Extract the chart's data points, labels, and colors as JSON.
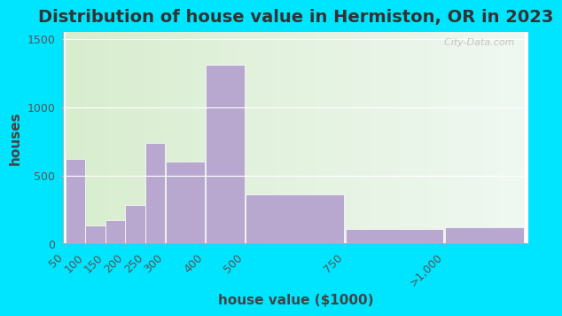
{
  "title": "Distribution of house value in Hermiston, OR in 2023",
  "xlabel": "house value ($1000)",
  "ylabel": "houses",
  "bin_edges": [
    50,
    100,
    150,
    200,
    250,
    300,
    400,
    500,
    750,
    1000,
    1200
  ],
  "bin_values": [
    620,
    130,
    170,
    280,
    740,
    600,
    1310,
    360,
    110,
    120
  ],
  "tick_positions": [
    50,
    100,
    150,
    200,
    250,
    300,
    400,
    500,
    750,
    1000
  ],
  "tick_labels": [
    "50",
    "100",
    "150",
    "200",
    "250",
    "300",
    "400",
    "500",
    "750",
    ">1,000"
  ],
  "bar_color": "#b8a8d0",
  "yticks": [
    0,
    500,
    1000,
    1500
  ],
  "ylim": [
    0,
    1550
  ],
  "bg_outer": "#00e5ff",
  "bg_plot_left": "#d8edce",
  "bg_plot_right": "#e8f4ee",
  "watermark": "  City-Data.com",
  "title_fontsize": 14,
  "axis_label_fontsize": 11,
  "tick_fontsize": 9
}
